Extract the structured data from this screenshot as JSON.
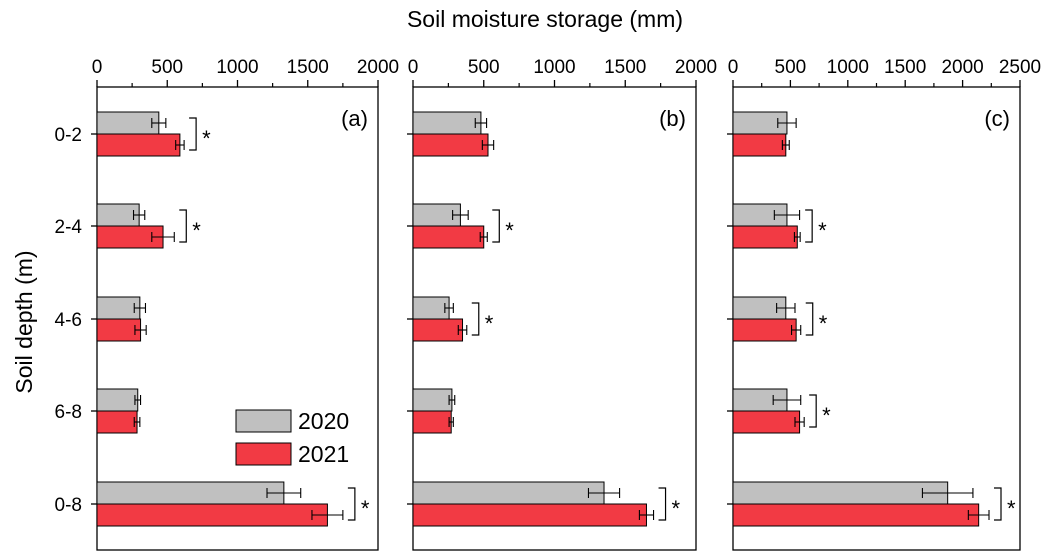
{
  "figure": {
    "xlabel": "Soil moisture storage (mm)",
    "ylabel": "Soil depth (m)"
  },
  "legend": {
    "placement": "lower-left of panel (a)",
    "items": [
      {
        "label": "2020",
        "color": "#c0c0c0"
      },
      {
        "label": "2021",
        "color": "#f23a44"
      }
    ]
  },
  "colors": {
    "series_2020": "#c0c0c0",
    "series_2021": "#f23a44",
    "axis": "#000000"
  },
  "chart_data": [
    {
      "type": "bar",
      "orientation": "horizontal",
      "panel_label": "(a)",
      "categories": [
        "0-2",
        "2-4",
        "4-6",
        "6-8",
        "0-8"
      ],
      "xlim": [
        0,
        2000
      ],
      "xticks": [
        0,
        500,
        1000,
        1500,
        2000
      ],
      "tick_labels": [
        "0",
        "500",
        "1000",
        "1500",
        "2000"
      ],
      "series": [
        {
          "name": "2020",
          "values": [
            440,
            300,
            305,
            290,
            1330
          ],
          "errors": [
            50,
            40,
            40,
            20,
            120
          ]
        },
        {
          "name": "2021",
          "values": [
            590,
            470,
            310,
            285,
            1640
          ],
          "errors": [
            30,
            80,
            40,
            20,
            110
          ]
        }
      ],
      "significance": [
        "*",
        "*",
        "",
        "",
        "*"
      ]
    },
    {
      "type": "bar",
      "orientation": "horizontal",
      "panel_label": "(b)",
      "categories": [
        "0-2",
        "2-4",
        "4-6",
        "6-8",
        "0-8"
      ],
      "xlim": [
        0,
        2000
      ],
      "xticks": [
        0,
        500,
        1000,
        1500,
        2000
      ],
      "tick_labels": [
        "0",
        "500",
        "1000",
        "1500",
        "2000"
      ],
      "series": [
        {
          "name": "2020",
          "values": [
            480,
            335,
            255,
            275,
            1350
          ],
          "errors": [
            40,
            55,
            30,
            20,
            110
          ]
        },
        {
          "name": "2021",
          "values": [
            530,
            500,
            350,
            270,
            1650
          ],
          "errors": [
            40,
            25,
            30,
            15,
            50
          ]
        }
      ],
      "significance": [
        "",
        "*",
        "*",
        "",
        "*"
      ]
    },
    {
      "type": "bar",
      "orientation": "horizontal",
      "panel_label": "(c)",
      "categories": [
        "0-2",
        "2-4",
        "4-6",
        "6-8",
        "0-8"
      ],
      "xlim": [
        0,
        2500
      ],
      "xticks": [
        0,
        500,
        1000,
        1500,
        2000,
        2500
      ],
      "tick_labels": [
        "0",
        "500",
        "1000",
        "1500",
        "2000",
        "2500"
      ],
      "series": [
        {
          "name": "2020",
          "values": [
            470,
            470,
            460,
            470,
            1870
          ],
          "errors": [
            80,
            110,
            80,
            120,
            220
          ]
        },
        {
          "name": "2021",
          "values": [
            460,
            560,
            550,
            580,
            2140
          ],
          "errors": [
            30,
            25,
            40,
            40,
            90
          ]
        }
      ],
      "significance": [
        "",
        "*",
        "*",
        "*",
        "*"
      ]
    }
  ]
}
